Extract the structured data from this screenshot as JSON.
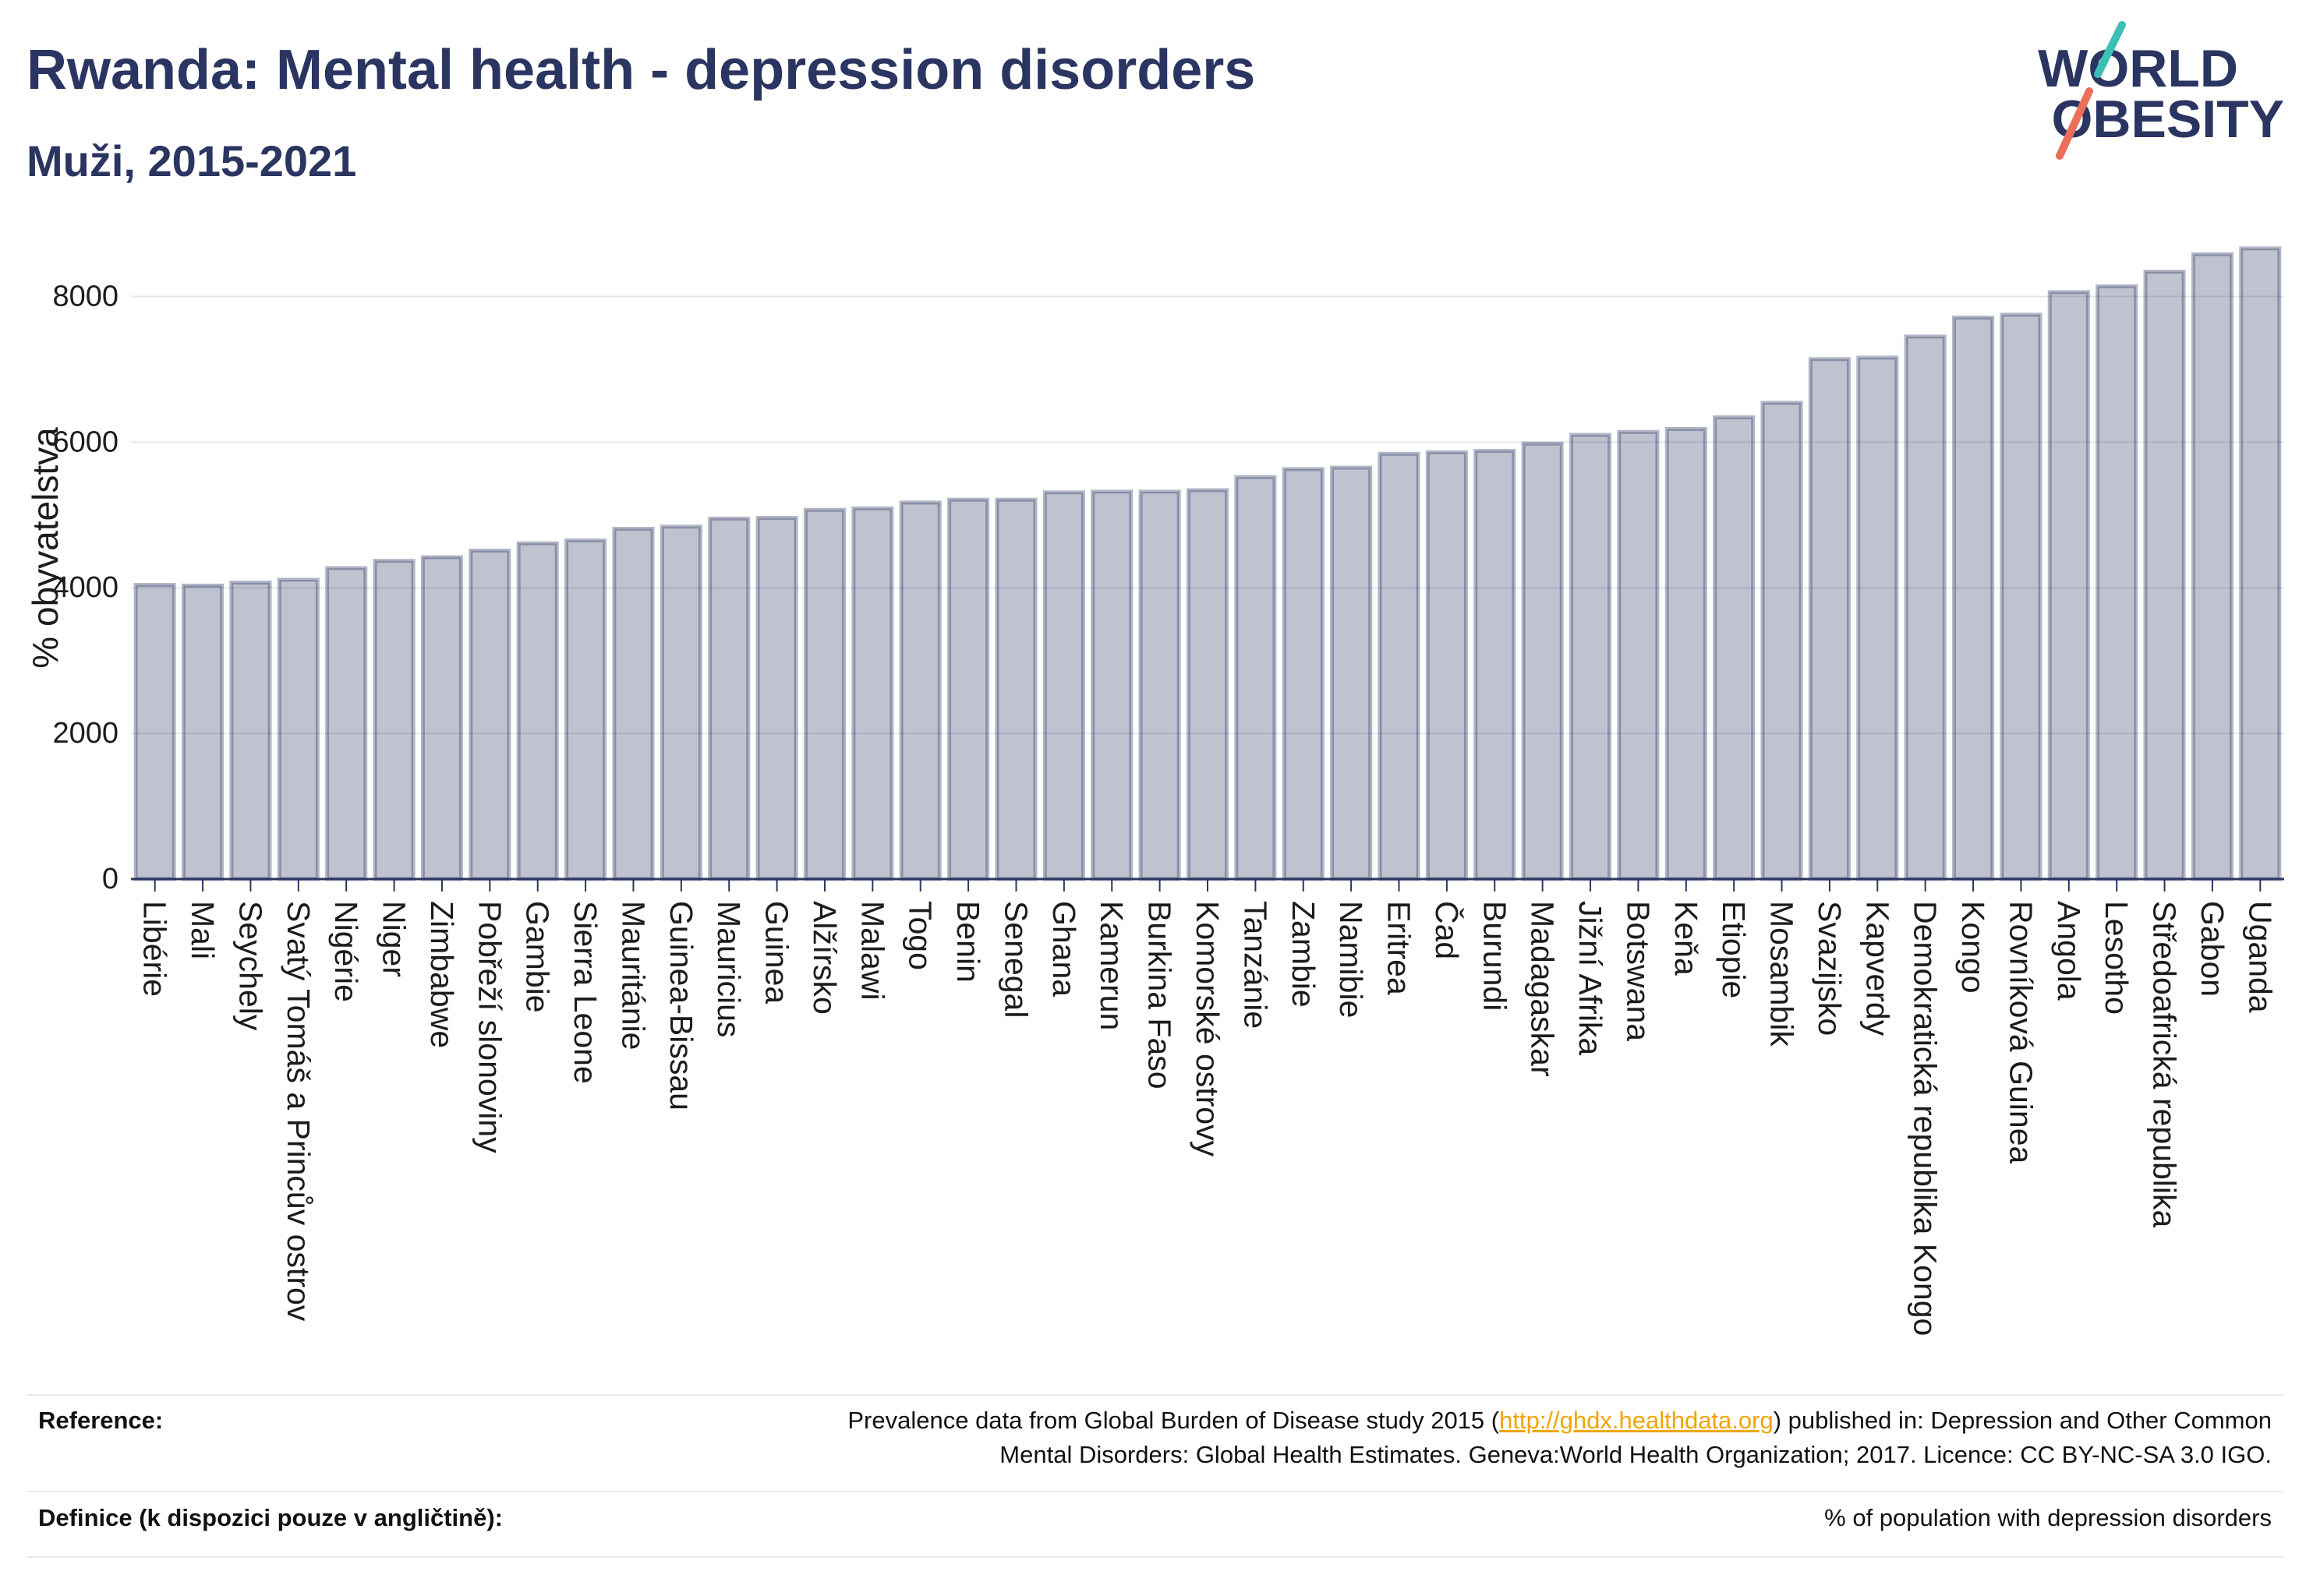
{
  "colors": {
    "brand_navy": "#2b3561",
    "bar_fill": "#2b35614d",
    "bar_stroke": "#2b35615c",
    "link": "#f0a500",
    "logo_teal": "#3cbfb4",
    "logo_coral": "#ec6f5a"
  },
  "logo": {
    "line1": "WORLD",
    "line2": "OBESITY"
  },
  "chart_data": {
    "type": "bar",
    "title": "Rwanda: Mental health - depression disorders",
    "subtitle": "Muži, 2015-2021",
    "xlabel": "",
    "ylabel": "% obyvatelstva",
    "ylim": [
      0,
      9000
    ],
    "yticks": [
      0,
      2000,
      4000,
      6000,
      8000
    ],
    "grid": true,
    "categories": [
      "Libérie",
      "Mali",
      "Seychely",
      "Svatý Tomáš a Princův ostrov",
      "Nigérie",
      "Niger",
      "Zimbabwe",
      "Pobřeží slonoviny",
      "Gambie",
      "Sierra Leone",
      "Mauritánie",
      "Guinea-Bissau",
      "Mauricius",
      "Guinea",
      "Alžírsko",
      "Malawi",
      "Togo",
      "Benin",
      "Senegal",
      "Ghana",
      "Kamerun",
      "Burkina Faso",
      "Komorské ostrovy",
      "Tanzánie",
      "Zambie",
      "Namibie",
      "Eritrea",
      "Čad",
      "Burundi",
      "Madagaskar",
      "Jižní Afrika",
      "Botswana",
      "Keňa",
      "Etiopie",
      "Mosambik",
      "Svazijsko",
      "Kapverdy",
      "Demokratická republika Kongo",
      "Kongo",
      "Rovníková Guinea",
      "Angola",
      "Lesotho",
      "Středoafrická republika",
      "Gabon",
      "Uganda"
    ],
    "values": [
      4040,
      4030,
      4070,
      4110,
      4270,
      4370,
      4420,
      4510,
      4610,
      4650,
      4810,
      4840,
      4950,
      4960,
      5070,
      5090,
      5170,
      5210,
      5210,
      5310,
      5320,
      5320,
      5340,
      5520,
      5630,
      5650,
      5840,
      5860,
      5880,
      5980,
      6100,
      6140,
      6180,
      6340,
      6540,
      7140,
      7160,
      7450,
      7710,
      7750,
      8060,
      8140,
      8340,
      8580,
      8660
    ]
  },
  "footer": {
    "reference_label": "Reference:",
    "reference_before": "Prevalence data from Global Burden of Disease study 2015 (",
    "reference_link": "http://ghdx.healthdata.org",
    "reference_after": ") published in: Depression and Other Common",
    "reference_line2": "Mental Disorders: Global Health Estimates. Geneva:World Health Organization; 2017. Licence: CC BY-NC-SA 3.0 IGO.",
    "definition_label": "Definice (k dispozici pouze v angličtině):",
    "definition_text": "% of population with depression disorders"
  }
}
